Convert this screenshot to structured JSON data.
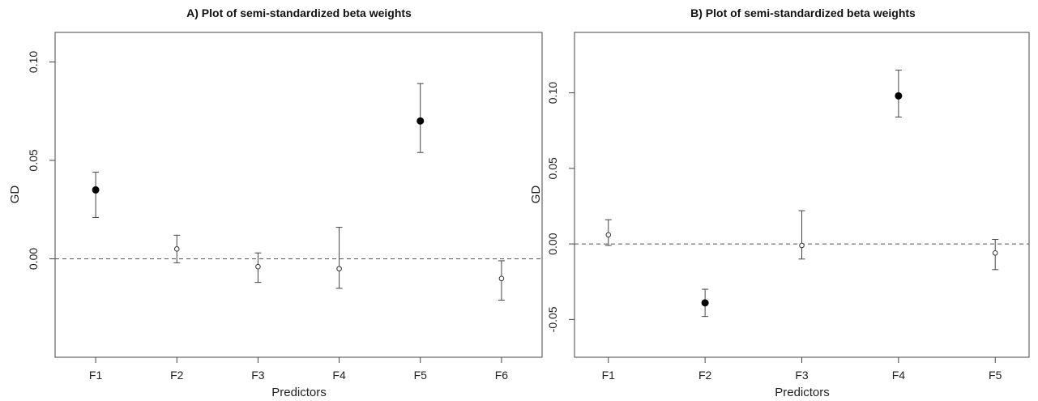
{
  "chart_data": [
    {
      "type": "scatter",
      "title": "A) Plot of semi-standardized beta weights",
      "xlabel": "Predictors",
      "ylabel": "GD",
      "categories": [
        "F1",
        "F2",
        "F3",
        "F4",
        "F5",
        "F6"
      ],
      "ylim": [
        -0.05,
        0.115
      ],
      "yticks": [
        0.0,
        0.05,
        0.1
      ],
      "ytick_labels": [
        "0.00",
        "0.05",
        "0.10"
      ],
      "reference_line": 0,
      "points": [
        {
          "category": "F1",
          "estimate": 0.035,
          "lower": 0.021,
          "upper": 0.044,
          "significant": true
        },
        {
          "category": "F2",
          "estimate": 0.005,
          "lower": -0.002,
          "upper": 0.012,
          "significant": false
        },
        {
          "category": "F3",
          "estimate": -0.004,
          "lower": -0.012,
          "upper": 0.003,
          "significant": false
        },
        {
          "category": "F4",
          "estimate": -0.005,
          "lower": -0.015,
          "upper": 0.016,
          "significant": false
        },
        {
          "category": "F5",
          "estimate": 0.07,
          "lower": 0.054,
          "upper": 0.089,
          "significant": true
        },
        {
          "category": "F6",
          "estimate": -0.01,
          "lower": -0.021,
          "upper": -0.001,
          "significant": false
        }
      ]
    },
    {
      "type": "scatter",
      "title": "B) Plot of semi-standardized beta weights",
      "xlabel": "Predictors",
      "ylabel": "GD",
      "categories": [
        "F1",
        "F2",
        "F3",
        "F4",
        "F5"
      ],
      "ylim": [
        -0.075,
        0.14
      ],
      "yticks": [
        -0.05,
        0.0,
        0.05,
        0.1
      ],
      "ytick_labels": [
        "-0.05",
        "0.00",
        "0.05",
        "0.10"
      ],
      "reference_line": 0,
      "points": [
        {
          "category": "F1",
          "estimate": 0.006,
          "lower": -0.001,
          "upper": 0.016,
          "significant": false
        },
        {
          "category": "F2",
          "estimate": -0.039,
          "lower": -0.048,
          "upper": -0.03,
          "significant": true
        },
        {
          "category": "F3",
          "estimate": -0.001,
          "lower": -0.01,
          "upper": 0.022,
          "significant": false
        },
        {
          "category": "F4",
          "estimate": 0.098,
          "lower": 0.084,
          "upper": 0.115,
          "significant": true
        },
        {
          "category": "F5",
          "estimate": -0.006,
          "lower": -0.017,
          "upper": 0.003,
          "significant": false
        }
      ]
    }
  ]
}
